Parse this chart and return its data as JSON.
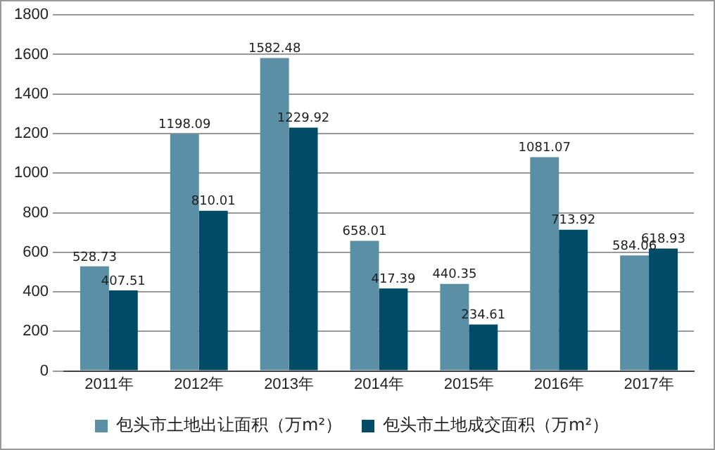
{
  "chart_data": {
    "type": "bar",
    "categories": [
      "2011年",
      "2012年",
      "2013年",
      "2014年",
      "2015年",
      "2016年",
      "2017年"
    ],
    "series": [
      {
        "name": "包头市土地出让面积（万m²）",
        "color": "#5a8fa5",
        "values": [
          528.73,
          1198.09,
          1582.48,
          658.01,
          440.35,
          1081.07,
          584.06
        ]
      },
      {
        "name": "包头市土地成交面积（万m²）",
        "color": "#004c68",
        "values": [
          407.51,
          810.01,
          1229.92,
          417.39,
          234.61,
          713.92,
          618.93
        ]
      }
    ],
    "ylim": [
      0,
      1800
    ],
    "yticks": [
      0,
      200,
      400,
      600,
      800,
      1000,
      1200,
      1400,
      1600,
      1800
    ],
    "grid": "y",
    "legend": "bottom",
    "data_labels": true
  }
}
